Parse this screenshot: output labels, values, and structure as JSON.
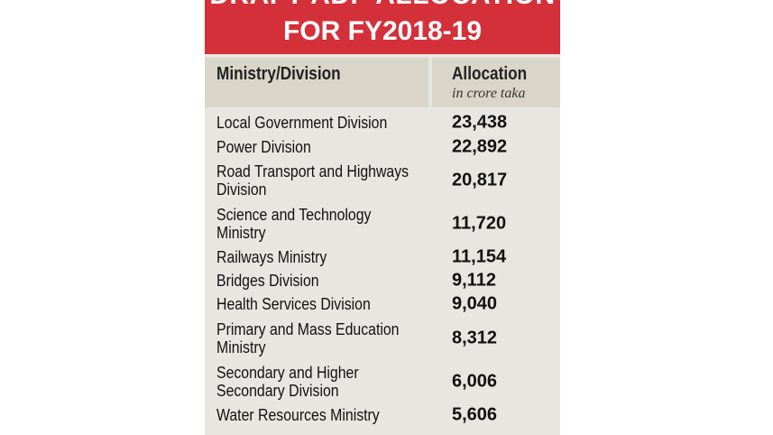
{
  "title": {
    "line1": "DRAFT ADP ALLOCATION",
    "line2": "FOR FY2018-19"
  },
  "header": {
    "ministry": "Ministry/Division",
    "allocation": "Allocation",
    "unit": "in crore taka"
  },
  "rows": [
    {
      "name": "Local Government Division",
      "value": "23,438"
    },
    {
      "name": "Power Division",
      "value": "22,892"
    },
    {
      "name": "Road Transport and Highways Division",
      "value": "20,817"
    },
    {
      "name": "Science and Technology Ministry",
      "value": "11,720"
    },
    {
      "name": "Railways Ministry",
      "value": "11,154"
    },
    {
      "name": "Bridges Division",
      "value": "9,112"
    },
    {
      "name": "Health Services Division",
      "value": "9,040"
    },
    {
      "name": "Primary and Mass Education Ministry",
      "value": "8,312"
    },
    {
      "name": "Secondary and Higher Secondary Division",
      "value": "6,006"
    },
    {
      "name": "Water Resources Ministry",
      "value": "5,606"
    }
  ],
  "colors": {
    "banner": "#d4303a",
    "header_bg": "#d9d5c9",
    "row_bg": "#e8e6e1"
  }
}
